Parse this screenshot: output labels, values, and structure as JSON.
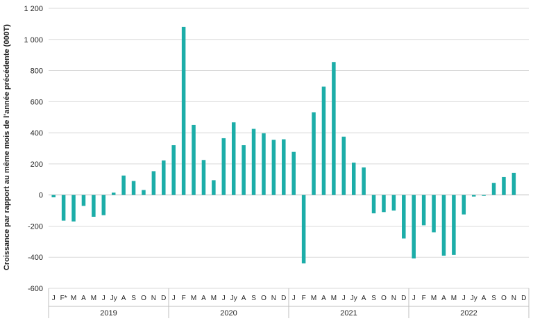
{
  "chart_data": {
    "type": "bar",
    "title": "",
    "ylabel": "Croissance par rapport au même mois de l'année précédente (000T)",
    "xlabel": "",
    "ylim": [
      -600,
      1200
    ],
    "yticks": [
      {
        "value": 1200,
        "label": "1 200"
      },
      {
        "value": 1000,
        "label": "1 000"
      },
      {
        "value": 800,
        "label": "800"
      },
      {
        "value": 600,
        "label": "600"
      },
      {
        "value": 400,
        "label": "400"
      },
      {
        "value": 200,
        "label": "200"
      },
      {
        "value": 0,
        "label": "0"
      },
      {
        "value": -200,
        "label": "-200"
      },
      {
        "value": -400,
        "label": "-400"
      },
      {
        "value": -600,
        "label": "-600"
      }
    ],
    "grid": true,
    "color": "#1CADA8",
    "years": [
      "2019",
      "2020",
      "2021",
      "2022"
    ],
    "categories": [
      "J",
      "F*",
      "M",
      "A",
      "M",
      "J",
      "Jy",
      "A",
      "S",
      "O",
      "N",
      "D",
      "J",
      "F",
      "M",
      "A",
      "M",
      "J",
      "Jy",
      "A",
      "S",
      "O",
      "N",
      "D",
      "J",
      "F",
      "M",
      "A",
      "M",
      "J",
      "Jy",
      "A",
      "S",
      "O",
      "N",
      "D",
      "J",
      "F",
      "M",
      "A",
      "M",
      "J",
      "Jy",
      "A",
      "S",
      "O",
      "N",
      "D"
    ],
    "values": [
      -15,
      -165,
      -170,
      -70,
      -140,
      -130,
      15,
      125,
      90,
      32,
      153,
      222,
      320,
      1080,
      450,
      225,
      95,
      365,
      467,
      320,
      425,
      397,
      355,
      358,
      277,
      -440,
      532,
      697,
      855,
      375,
      208,
      177,
      -118,
      -110,
      -100,
      -280,
      -408,
      -195,
      -240,
      -390,
      -385,
      -125,
      -10,
      -5,
      78,
      115,
      142,
      null
    ]
  }
}
